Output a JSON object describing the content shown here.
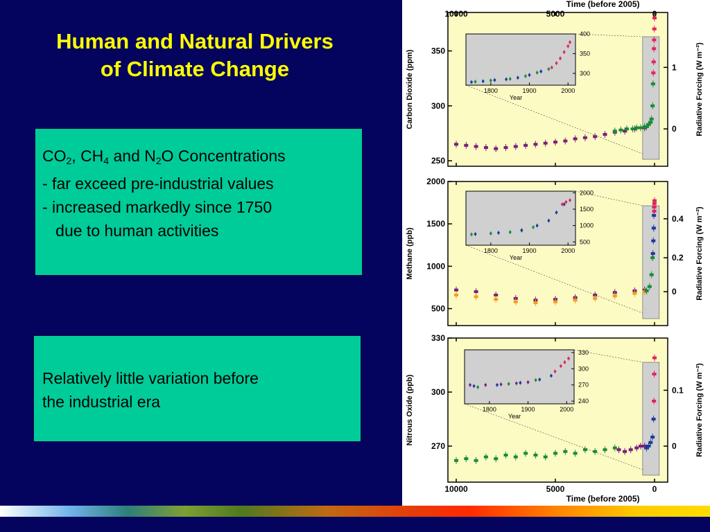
{
  "slide": {
    "title_line1": "Human and Natural Drivers",
    "title_line2": "of Climate Change"
  },
  "box1": {
    "heading_parts": [
      "CO",
      "2",
      ", CH",
      "4",
      " and N",
      "2",
      "O Concentrations"
    ],
    "bullets": [
      "- far exceed pre-industrial values",
      "- increased markedly since 1750",
      "   due to human activities"
    ]
  },
  "box2": {
    "lines": [
      "Relatively little variation before",
      "the industrial era"
    ]
  },
  "chart_data": [
    {
      "type": "scatter",
      "ylabel": "Carbon Dioxide (ppm)",
      "y2label": "Radiative Forcing (W m⁻²)",
      "xlabel_top": "Time (before 2005)",
      "x_ticks": [
        10000,
        5000,
        0
      ],
      "ylim": [
        245,
        385
      ],
      "y_ticks": [
        250,
        300,
        350
      ],
      "y2_ticks": [
        {
          "v": 0,
          "at": 279
        },
        {
          "v": 1,
          "at": 335
        }
      ],
      "series": [
        {
          "color": "#7a1f7a",
          "x": [
            10000,
            9500,
            9000,
            8500,
            8000,
            7500,
            7000,
            6500,
            6000,
            5500,
            5000,
            4500,
            4000,
            3500,
            3000,
            2500,
            2000,
            1500,
            1000,
            500
          ],
          "y": [
            265,
            264,
            263,
            262,
            261,
            262,
            263,
            264,
            265,
            266,
            267,
            268,
            270,
            271,
            272,
            274,
            276,
            277,
            279,
            280
          ]
        },
        {
          "color": "#1a8a3a",
          "x": [
            2000,
            1700,
            1400,
            1100,
            900,
            700,
            500,
            400,
            300,
            200,
            150,
            100,
            75
          ],
          "y": [
            277,
            278,
            279,
            279,
            280,
            280,
            281,
            281,
            283,
            285,
            288,
            300,
            320
          ]
        },
        {
          "color": "#e0245e",
          "x": [
            60,
            45,
            30,
            20,
            10,
            0
          ],
          "y": [
            330,
            340,
            352,
            360,
            370,
            380
          ]
        }
      ],
      "inset": {
        "xlabel": "Year",
        "x_ticks": [
          1800,
          1900,
          2000
        ],
        "y_ticks": [
          300,
          350,
          400
        ],
        "xlim": [
          1750,
          2005
        ],
        "ylim": [
          270,
          400
        ],
        "series": [
          {
            "color": "#1a3a9a",
            "x": [
              1750,
              1780,
              1810,
              1840,
              1870,
              1900,
              1930
            ],
            "y": [
              278,
              280,
              283,
              285,
              289,
              296,
              305
            ]
          },
          {
            "color": "#1a8a3a",
            "x": [
              1760,
              1800,
              1850,
              1890,
              1920,
              1950
            ],
            "y": [
              279,
              282,
              286,
              293,
              302,
              311
            ]
          },
          {
            "color": "#e0245e",
            "x": [
              1958,
              1970,
              1980,
              1990,
              2000,
              2005
            ],
            "y": [
              315,
              326,
              338,
              354,
              369,
              379
            ]
          }
        ]
      }
    },
    {
      "type": "scatter",
      "ylabel": "Methane (ppb)",
      "y2label": "Radiative Forcing (W m⁻²)",
      "x_ticks": [
        10000,
        5000,
        0
      ],
      "ylim": [
        300,
        2000
      ],
      "y_ticks": [
        500,
        1000,
        1500,
        2000
      ],
      "y2_ticks": [
        {
          "v": 0,
          "at": 700
        },
        {
          "v": 0.2,
          "at": 1100
        },
        {
          "v": 0.4,
          "at": 1560
        }
      ],
      "series": [
        {
          "color": "#7a1f7a",
          "x": [
            10000,
            9000,
            8000,
            7000,
            6000,
            5000,
            4000,
            3000,
            2000,
            1000,
            500
          ],
          "y": [
            720,
            700,
            660,
            620,
            600,
            610,
            630,
            660,
            690,
            710,
            720
          ]
        },
        {
          "color": "#f0a020",
          "x": [
            10000,
            9000,
            8000,
            7000,
            6000,
            5000,
            4000,
            3000,
            2000,
            1000,
            500
          ],
          "y": [
            660,
            640,
            610,
            580,
            570,
            580,
            600,
            620,
            650,
            680,
            700
          ]
        },
        {
          "color": "#1a8a3a",
          "x": [
            400,
            250,
            150,
            100
          ],
          "y": [
            710,
            760,
            900,
            1100
          ]
        },
        {
          "color": "#1a3a9a",
          "x": [
            80,
            60,
            40,
            30,
            20
          ],
          "y": [
            1150,
            1300,
            1450,
            1600,
            1700
          ]
        },
        {
          "color": "#e0245e",
          "x": [
            15,
            10,
            5,
            0
          ],
          "y": [
            1650,
            1700,
            1740,
            1774
          ]
        }
      ],
      "inset": {
        "xlabel": "Year",
        "x_ticks": [
          1800,
          1900,
          2000
        ],
        "y_ticks": [
          500,
          1000,
          1500,
          2000
        ],
        "xlim": [
          1750,
          2005
        ],
        "ylim": [
          400,
          2050
        ],
        "series": [
          {
            "color": "#1a8a3a",
            "x": [
              1750,
              1800,
              1850,
              1880,
              1910
            ],
            "y": [
              730,
              760,
              800,
              850,
              950
            ]
          },
          {
            "color": "#1a3a9a",
            "x": [
              1760,
              1820,
              1880,
              1920,
              1950,
              1970,
              1990
            ],
            "y": [
              740,
              780,
              860,
              1000,
              1150,
              1400,
              1650
            ]
          },
          {
            "color": "#e0245e",
            "x": [
              1985,
              1995,
              2005
            ],
            "y": [
              1650,
              1720,
              1774
            ]
          }
        ]
      }
    },
    {
      "type": "scatter",
      "ylabel": "Nitrous Oxide (ppb)",
      "y2label": "Radiative Forcing (W m⁻²)",
      "xlabel_bottom": "Time (before 2005)",
      "x_ticks": [
        10000,
        5000,
        0
      ],
      "ylim": [
        250,
        330
      ],
      "y_ticks": [
        270,
        300,
        330
      ],
      "y2_ticks": [
        {
          "v": 0,
          "at": 270
        },
        {
          "v": 0.1,
          "at": 301
        }
      ],
      "series": [
        {
          "color": "#1a8a3a",
          "x": [
            10000,
            9500,
            9000,
            8500,
            8000,
            7500,
            7000,
            6500,
            6000,
            5500,
            5000,
            4500,
            4000,
            3500,
            3000,
            2500,
            2000
          ],
          "y": [
            262,
            263,
            262,
            264,
            263,
            265,
            264,
            266,
            265,
            264,
            266,
            267,
            266,
            268,
            267,
            268,
            269
          ]
        },
        {
          "color": "#7a1f7a",
          "x": [
            1800,
            1500,
            1200,
            900,
            700,
            500
          ],
          "y": [
            268,
            267,
            268,
            269,
            270,
            270
          ]
        },
        {
          "color": "#1a3a9a",
          "x": [
            400,
            300,
            200,
            100,
            50
          ],
          "y": [
            269,
            270,
            272,
            275,
            285
          ]
        },
        {
          "color": "#e0245e",
          "x": [
            30,
            15,
            0
          ],
          "y": [
            295,
            310,
            319
          ]
        }
      ],
      "inset": {
        "xlabel": "Year",
        "x_ticks": [
          1800,
          1900,
          2000
        ],
        "y_ticks": [
          240,
          270,
          300,
          330
        ],
        "xlim": [
          1750,
          2005
        ],
        "ylim": [
          235,
          335
        ],
        "series": [
          {
            "color": "#7a1f7a",
            "x": [
              1750,
              1790,
              1830,
              1870,
              1900
            ],
            "y": [
              270,
              270,
              271,
              273,
              275
            ]
          },
          {
            "color": "#1a3a9a",
            "x": [
              1760,
              1820,
              1880,
              1930,
              1960
            ],
            "y": [
              268,
              270,
              274,
              280,
              287
            ]
          },
          {
            "color": "#1a8a3a",
            "x": [
              1770,
              1850,
              1920
            ],
            "y": [
              266,
              272,
              279
            ]
          },
          {
            "color": "#e0245e",
            "x": [
              1970,
              1985,
              1995,
              2005
            ],
            "y": [
              295,
              305,
              312,
              319
            ]
          }
        ]
      }
    }
  ]
}
